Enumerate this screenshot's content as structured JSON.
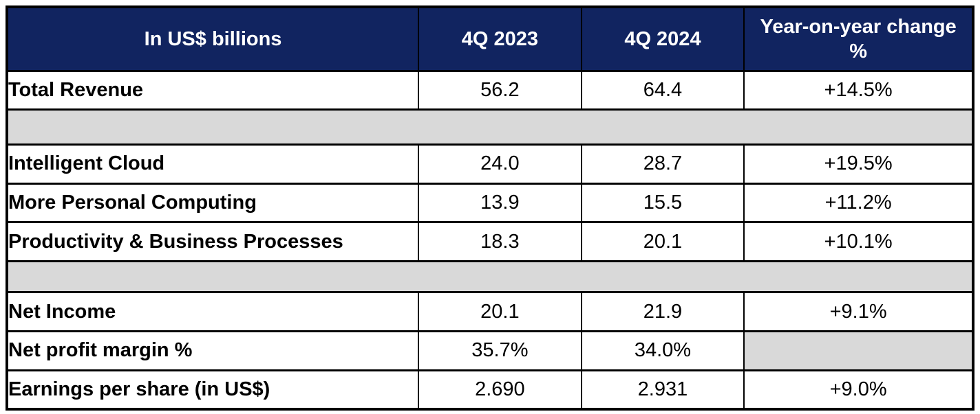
{
  "chart_data": {
    "type": "table",
    "columns": [
      "In US$ billions",
      "4Q 2023",
      "4Q 2024",
      "Year-on-year change %"
    ],
    "rows": [
      [
        "Total Revenue",
        "56.2",
        "64.4",
        "+14.5%"
      ],
      [
        "Intelligent Cloud",
        "24.0",
        "28.7",
        "+19.5%"
      ],
      [
        "More Personal Computing",
        "13.9",
        "15.5",
        "+11.2%"
      ],
      [
        "Productivity & Business Processes",
        "18.3",
        "20.1",
        "+10.1%"
      ],
      [
        "Net Income",
        "20.1",
        "21.9",
        "+9.1%"
      ],
      [
        "Net profit margin %",
        "35.7%",
        "34.0%",
        ""
      ],
      [
        "Earnings per share (in US$)",
        "2.690",
        "2.931",
        "+9.0%"
      ]
    ],
    "layout": {
      "spacer_band_after_row_indexes": [
        0,
        3
      ],
      "empty_gray_cell": "Net profit margin % / Year-on-year change %",
      "grid": "black borders, full grid; spacer bands span all columns"
    },
    "colors": {
      "header_bg": "#112460",
      "header_text": "#FFFFFF",
      "spacer_bg": "#D9D9D9",
      "border": "#000000",
      "body_text": "#000000"
    }
  }
}
